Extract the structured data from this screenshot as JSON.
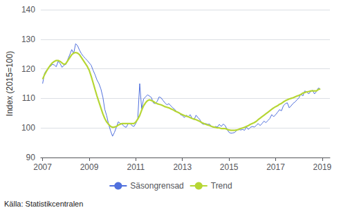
{
  "chart_data": {
    "type": "line",
    "ylabel": "Index (2015=100)",
    "annotations": [
      "Källa: Statistikcentralen"
    ],
    "legend": "bottom",
    "grid": true,
    "xlim": [
      2006.92,
      2019.33
    ],
    "xticks": [
      2007,
      2009,
      2011,
      2013,
      2015,
      2017,
      2019
    ],
    "ylim": [
      90,
      140
    ],
    "yticks": [
      90,
      100,
      110,
      120,
      130,
      140
    ],
    "x": [
      2007,
      2007.0833333333333,
      2007.1666666666667,
      2007.25,
      2007.3333333333333,
      2007.4166666666667,
      2007.5,
      2007.5833333333333,
      2007.6666666666667,
      2007.75,
      2007.8333333333333,
      2007.9166666666667,
      2008,
      2008.0833333333333,
      2008.1666666666667,
      2008.25,
      2008.3333333333333,
      2008.4166666666667,
      2008.5,
      2008.5833333333333,
      2008.6666666666667,
      2008.75,
      2008.8333333333333,
      2008.9166666666667,
      2009,
      2009.0833333333333,
      2009.1666666666667,
      2009.25,
      2009.3333333333333,
      2009.4166666666667,
      2009.5,
      2009.5833333333333,
      2009.6666666666667,
      2009.75,
      2009.8333333333333,
      2009.9166666666667,
      2010,
      2010.0833333333333,
      2010.1666666666667,
      2010.25,
      2010.3333333333333,
      2010.4166666666667,
      2010.5,
      2010.5833333333333,
      2010.6666666666667,
      2010.75,
      2010.8333333333333,
      2010.9166666666667,
      2011,
      2011.0833333333333,
      2011.1666666666667,
      2011.25,
      2011.3333333333333,
      2011.4166666666667,
      2011.5,
      2011.5833333333333,
      2011.6666666666667,
      2011.75,
      2011.8333333333333,
      2011.9166666666667,
      2012,
      2012.0833333333333,
      2012.1666666666667,
      2012.25,
      2012.3333333333333,
      2012.4166666666667,
      2012.5,
      2012.5833333333333,
      2012.6666666666667,
      2012.75,
      2012.8333333333333,
      2012.9166666666667,
      2013,
      2013.0833333333333,
      2013.1666666666667,
      2013.25,
      2013.3333333333333,
      2013.4166666666667,
      2013.5,
      2013.5833333333333,
      2013.6666666666667,
      2013.75,
      2013.8333333333333,
      2013.9166666666667,
      2014,
      2014.0833333333333,
      2014.1666666666667,
      2014.25,
      2014.3333333333333,
      2014.4166666666667,
      2014.5,
      2014.5833333333333,
      2014.6666666666667,
      2014.75,
      2014.8333333333333,
      2014.9166666666667,
      2015,
      2015.0833333333333,
      2015.1666666666667,
      2015.25,
      2015.3333333333333,
      2015.4166666666667,
      2015.5,
      2015.5833333333333,
      2015.6666666666667,
      2015.75,
      2015.8333333333333,
      2015.9166666666667,
      2016,
      2016.0833333333333,
      2016.1666666666667,
      2016.25,
      2016.3333333333333,
      2016.4166666666667,
      2016.5,
      2016.5833333333333,
      2016.6666666666667,
      2016.75,
      2016.8333333333333,
      2016.9166666666667,
      2017,
      2017.0833333333333,
      2017.1666666666667,
      2017.25,
      2017.3333333333333,
      2017.4166666666667,
      2017.5,
      2017.5833333333333,
      2017.6666666666667,
      2017.75,
      2017.8333333333333,
      2017.9166666666667,
      2018,
      2018.0833333333333,
      2018.1666666666667,
      2018.25,
      2018.3333333333333,
      2018.4166666666667,
      2018.5,
      2018.5833333333333,
      2018.6666666666667,
      2018.75,
      2018.8333333333333,
      2018.9166666666667
    ],
    "series": [
      {
        "name": "Säsongrensad",
        "values": [
          115.0,
          118.5,
          119.5,
          120.2,
          120.8,
          121.5,
          121.3,
          120.7,
          122.5,
          121.8,
          120.5,
          121.2,
          121.5,
          123.2,
          124.8,
          126.5,
          125.2,
          128.5,
          127.8,
          126.3,
          125.1,
          124.2,
          123.5,
          122.8,
          122.0,
          121.2,
          119.5,
          118.0,
          116.2,
          115.0,
          113.2,
          110.5,
          106.3,
          104.1,
          101.2,
          99.0,
          97.2,
          98.5,
          100.3,
          102.1,
          101.5,
          101.2,
          100.5,
          100.2,
          101.3,
          101.5,
          100.8,
          100.5,
          101.5,
          103.2,
          115.0,
          106.5,
          109.8,
          110.5,
          111.2,
          110.8,
          110.3,
          108.5,
          108.2,
          109.0,
          110.5,
          110.2,
          109.3,
          108.5,
          107.8,
          108.2,
          107.5,
          106.8,
          106.3,
          105.5,
          105.2,
          104.5,
          104.2,
          103.5,
          104.3,
          103.8,
          104.5,
          103.2,
          102.8,
          104.3,
          103.5,
          102.8,
          101.5,
          101.2,
          101.5,
          101.2,
          101.3,
          100.5,
          100.2,
          100.5,
          100.3,
          101.2,
          100.5,
          101.3,
          100.8,
          99.5,
          98.5,
          98.2,
          98.3,
          98.5,
          99.2,
          99.5,
          99.3,
          99.5,
          99.2,
          100.3,
          99.5,
          100.2,
          100.5,
          100.3,
          100.8,
          101.5,
          100.8,
          101.5,
          102.3,
          101.8,
          102.5,
          103.2,
          104.5,
          103.8,
          104.5,
          105.3,
          106.2,
          105.8,
          107.5,
          108.2,
          108.5,
          106.8,
          107.5,
          108.3,
          108.8,
          109.5,
          110.2,
          111.5,
          110.8,
          112.5,
          112.2,
          111.5,
          112.3,
          112.8,
          111.5,
          112.3,
          113.5,
          113.2
        ]
      },
      {
        "name": "Trend",
        "values": [
          116.5,
          118.0,
          119.2,
          120.3,
          121.2,
          122.0,
          122.5,
          122.8,
          122.8,
          122.5,
          122.0,
          121.5,
          121.8,
          122.8,
          123.8,
          124.8,
          125.3,
          125.5,
          125.3,
          124.8,
          123.8,
          122.8,
          121.8,
          120.8,
          119.5,
          117.5,
          115.3,
          113.0,
          110.8,
          108.8,
          106.8,
          104.8,
          103.2,
          102.0,
          101.2,
          100.5,
          100.2,
          100.3,
          100.5,
          101.0,
          101.3,
          101.5,
          101.5,
          101.5,
          101.5,
          101.5,
          101.5,
          101.5,
          102.0,
          103.0,
          104.2,
          106.0,
          107.5,
          108.5,
          109.2,
          109.5,
          109.3,
          109.0,
          108.5,
          108.2,
          108.0,
          107.8,
          107.5,
          107.2,
          107.0,
          106.8,
          106.5,
          106.2,
          105.8,
          105.5,
          105.2,
          104.8,
          104.5,
          104.2,
          104.0,
          103.8,
          103.5,
          103.2,
          103.0,
          102.8,
          102.5,
          102.2,
          101.8,
          101.5,
          101.2,
          101.0,
          100.8,
          100.5,
          100.3,
          100.2,
          100.0,
          100.0,
          99.8,
          99.8,
          99.8,
          99.5,
          99.3,
          99.2,
          99.2,
          99.2,
          99.3,
          99.5,
          99.8,
          100.0,
          100.2,
          100.5,
          100.8,
          101.2,
          101.5,
          101.8,
          102.2,
          102.8,
          103.3,
          103.8,
          104.3,
          104.8,
          105.3,
          105.8,
          106.3,
          106.8,
          107.2,
          107.5,
          108.0,
          108.3,
          108.8,
          109.2,
          109.5,
          109.8,
          110.0,
          110.2,
          110.5,
          110.8,
          111.0,
          111.3,
          111.8,
          112.0,
          112.2,
          112.3,
          112.5,
          112.5,
          112.5,
          112.5,
          113.0,
          113.2
        ]
      }
    ]
  }
}
